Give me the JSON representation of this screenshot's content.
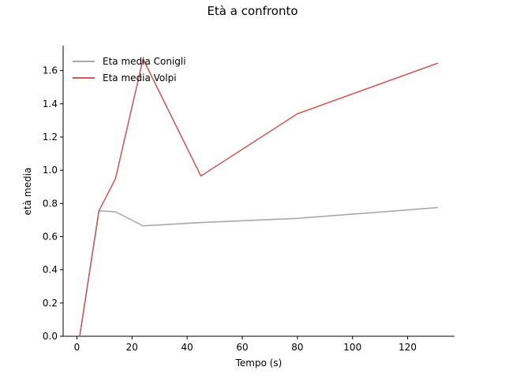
{
  "chart_data": {
    "type": "line",
    "title": "Età a confronto",
    "xlabel": "Tempo (s)",
    "ylabel": "età media",
    "xlim": [
      -5,
      137
    ],
    "ylim": [
      0,
      1.75
    ],
    "xticks": [
      0,
      20,
      40,
      60,
      80,
      100,
      120
    ],
    "yticks": [
      0.0,
      0.2,
      0.4,
      0.6,
      0.8,
      1.0,
      1.2,
      1.4,
      1.6
    ],
    "xtick_labels": [
      "0",
      "20",
      "40",
      "60",
      "80",
      "100",
      "120"
    ],
    "ytick_labels": [
      "0.0",
      "0.2",
      "0.4",
      "0.6",
      "0.8",
      "1.0",
      "1.2",
      "1.4",
      "1.6"
    ],
    "grid": false,
    "legend": "top-left",
    "series": [
      {
        "name": "Eta media Conigli",
        "color": "#a9a9a9",
        "x": [
          1,
          8,
          14,
          24,
          45,
          80,
          131
        ],
        "y": [
          0.0,
          0.755,
          0.75,
          0.665,
          0.685,
          0.71,
          0.775
        ]
      },
      {
        "name": "Eta media Volpi",
        "color": "#cd5c5c",
        "x": [
          1,
          8,
          14,
          24,
          45,
          80,
          131
        ],
        "y": [
          0.0,
          0.755,
          0.95,
          1.67,
          0.965,
          1.34,
          1.645
        ]
      }
    ]
  }
}
